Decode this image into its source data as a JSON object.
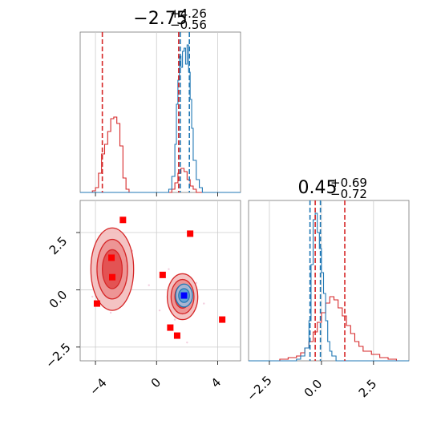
{
  "chart_data": [
    {
      "type": "histogram",
      "panel": "top-left marginal",
      "title": {
        "main": "−2.75",
        "sup": "+4.26",
        "sub": "−0.56"
      },
      "xlim": [
        -5,
        5.5
      ],
      "ylim": [
        0,
        1
      ],
      "grid": true,
      "series": [
        {
          "color": "#d62728",
          "x": [
            -5,
            -4.4,
            -4.2,
            -4.0,
            -3.8,
            -3.6,
            -3.4,
            -3.2,
            -3.0,
            -2.8,
            -2.6,
            -2.4,
            -2.2,
            -2.0,
            -1.8,
            -1.0,
            0.6,
            1.0,
            1.2,
            1.4,
            1.6,
            1.8,
            2.0,
            2.2,
            2.4,
            2.6,
            3.0,
            5.5
          ],
          "values": [
            0,
            0,
            0.01,
            0.03,
            0.12,
            0.24,
            0.3,
            0.38,
            0.46,
            0.47,
            0.43,
            0.29,
            0.09,
            0.02,
            0,
            0,
            0,
            0.02,
            0.06,
            0.12,
            0.15,
            0.13,
            0.08,
            0.04,
            0.02,
            0,
            0,
            0
          ]
        },
        {
          "color": "#1f77b4",
          "x": [
            -5,
            0.6,
            0.8,
            1.0,
            1.2,
            1.3,
            1.4,
            1.5,
            1.6,
            1.7,
            1.8,
            1.9,
            2.0,
            2.1,
            2.2,
            2.3,
            2.4,
            2.6,
            2.8,
            3.0,
            5.5
          ],
          "values": [
            0,
            0,
            0.02,
            0.1,
            0.3,
            0.55,
            0.7,
            0.85,
            0.78,
            0.88,
            0.9,
            0.8,
            0.92,
            0.75,
            0.58,
            0.4,
            0.2,
            0.08,
            0.03,
            0,
            0
          ]
        }
      ],
      "vlines": [
        {
          "x": -3.55,
          "color": "#d62728"
        },
        {
          "x": 1.45,
          "color": "#d62728"
        },
        {
          "x": 1.55,
          "color": "#1f77b4"
        },
        {
          "x": 2.15,
          "color": "#1f77b4"
        }
      ]
    },
    {
      "type": "histogram",
      "panel": "bottom-right marginal",
      "title": {
        "main": "0.45",
        "sup": "+0.69",
        "sub": "−0.72"
      },
      "xlim": [
        -3.5,
        4.2
      ],
      "xticks": [
        "−2.5",
        "0.0",
        "2.5"
      ],
      "xtick_values": [
        -2.5,
        0.0,
        2.5
      ],
      "ylim": [
        0,
        1
      ],
      "grid": true,
      "series": [
        {
          "color": "#d62728",
          "x": [
            -3.5,
            -2.0,
            -1.6,
            -1.2,
            -1.0,
            -0.8,
            -0.6,
            -0.4,
            -0.2,
            0.0,
            0.2,
            0.4,
            0.6,
            0.8,
            1.0,
            1.2,
            1.4,
            1.6,
            1.8,
            2.0,
            2.4,
            2.8,
            3.2,
            3.6,
            4.2
          ],
          "values": [
            0,
            0.01,
            0.02,
            0.03,
            0.05,
            0.08,
            0.12,
            0.18,
            0.24,
            0.3,
            0.36,
            0.4,
            0.38,
            0.33,
            0.28,
            0.22,
            0.17,
            0.12,
            0.09,
            0.06,
            0.04,
            0.02,
            0.01,
            0,
            0
          ]
        },
        {
          "color": "#1f77b4",
          "x": [
            -3.5,
            -1.2,
            -1.0,
            -0.8,
            -0.6,
            -0.5,
            -0.4,
            -0.3,
            -0.2,
            -0.1,
            0.0,
            0.1,
            0.2,
            0.3,
            0.4,
            0.5,
            0.7,
            4.2
          ],
          "values": [
            0,
            0.01,
            0.03,
            0.08,
            0.25,
            0.6,
            0.88,
            0.92,
            0.8,
            0.7,
            0.55,
            0.42,
            0.25,
            0.12,
            0.06,
            0.03,
            0,
            0
          ]
        }
      ],
      "vlines": [
        {
          "x": -0.55,
          "color": "#1f77b4"
        },
        {
          "x": -0.3,
          "color": "#d62728"
        },
        {
          "x": -0.05,
          "color": "#1f77b4"
        },
        {
          "x": 1.12,
          "color": "#d62728"
        }
      ]
    },
    {
      "type": "scatter",
      "panel": "bottom-left joint",
      "xlim": [
        -5,
        5.5
      ],
      "ylim": [
        -3.1,
        3.9
      ],
      "xticks": [
        "−4",
        "0",
        "4"
      ],
      "xtick_values": [
        -4,
        0,
        4
      ],
      "yticks": [
        "−2.5",
        "0.0",
        "2.5"
      ],
      "ytick_values": [
        -2.5,
        0.0,
        2.5
      ],
      "grid": true,
      "contours": [
        {
          "color": "#d62728",
          "center": [
            -2.9,
            0.9
          ],
          "levels": [
            [
              1.4,
              1.8
            ],
            [
              1.0,
              1.3
            ],
            [
              0.65,
              0.85
            ]
          ]
        },
        {
          "color": "#d62728",
          "center": [
            1.7,
            -0.3
          ],
          "levels": [
            [
              1.0,
              1.0
            ],
            [
              0.75,
              0.75
            ],
            [
              0.5,
              0.5
            ]
          ]
        },
        {
          "color": "#1f77b4",
          "center": [
            1.8,
            -0.25
          ],
          "levels": [
            [
              0.55,
              0.5
            ],
            [
              0.35,
              0.3
            ]
          ]
        }
      ],
      "markers": [
        {
          "x": -2.2,
          "y": 3.05,
          "color": "#ff0000"
        },
        {
          "x": 2.2,
          "y": 2.45,
          "color": "#ff0000"
        },
        {
          "x": -2.95,
          "y": 1.4,
          "color": "#ff0000"
        },
        {
          "x": -2.9,
          "y": 0.55,
          "color": "#ff0000"
        },
        {
          "x": 0.4,
          "y": 0.65,
          "color": "#ff0000"
        },
        {
          "x": -3.9,
          "y": -0.6,
          "color": "#ff0000"
        },
        {
          "x": 0.9,
          "y": -1.65,
          "color": "#ff0000"
        },
        {
          "x": 1.35,
          "y": -2.0,
          "color": "#ff0000"
        },
        {
          "x": 4.3,
          "y": -1.3,
          "color": "#ff0000"
        },
        {
          "x": 1.8,
          "y": -0.25,
          "color": "#0000ff"
        }
      ]
    }
  ]
}
